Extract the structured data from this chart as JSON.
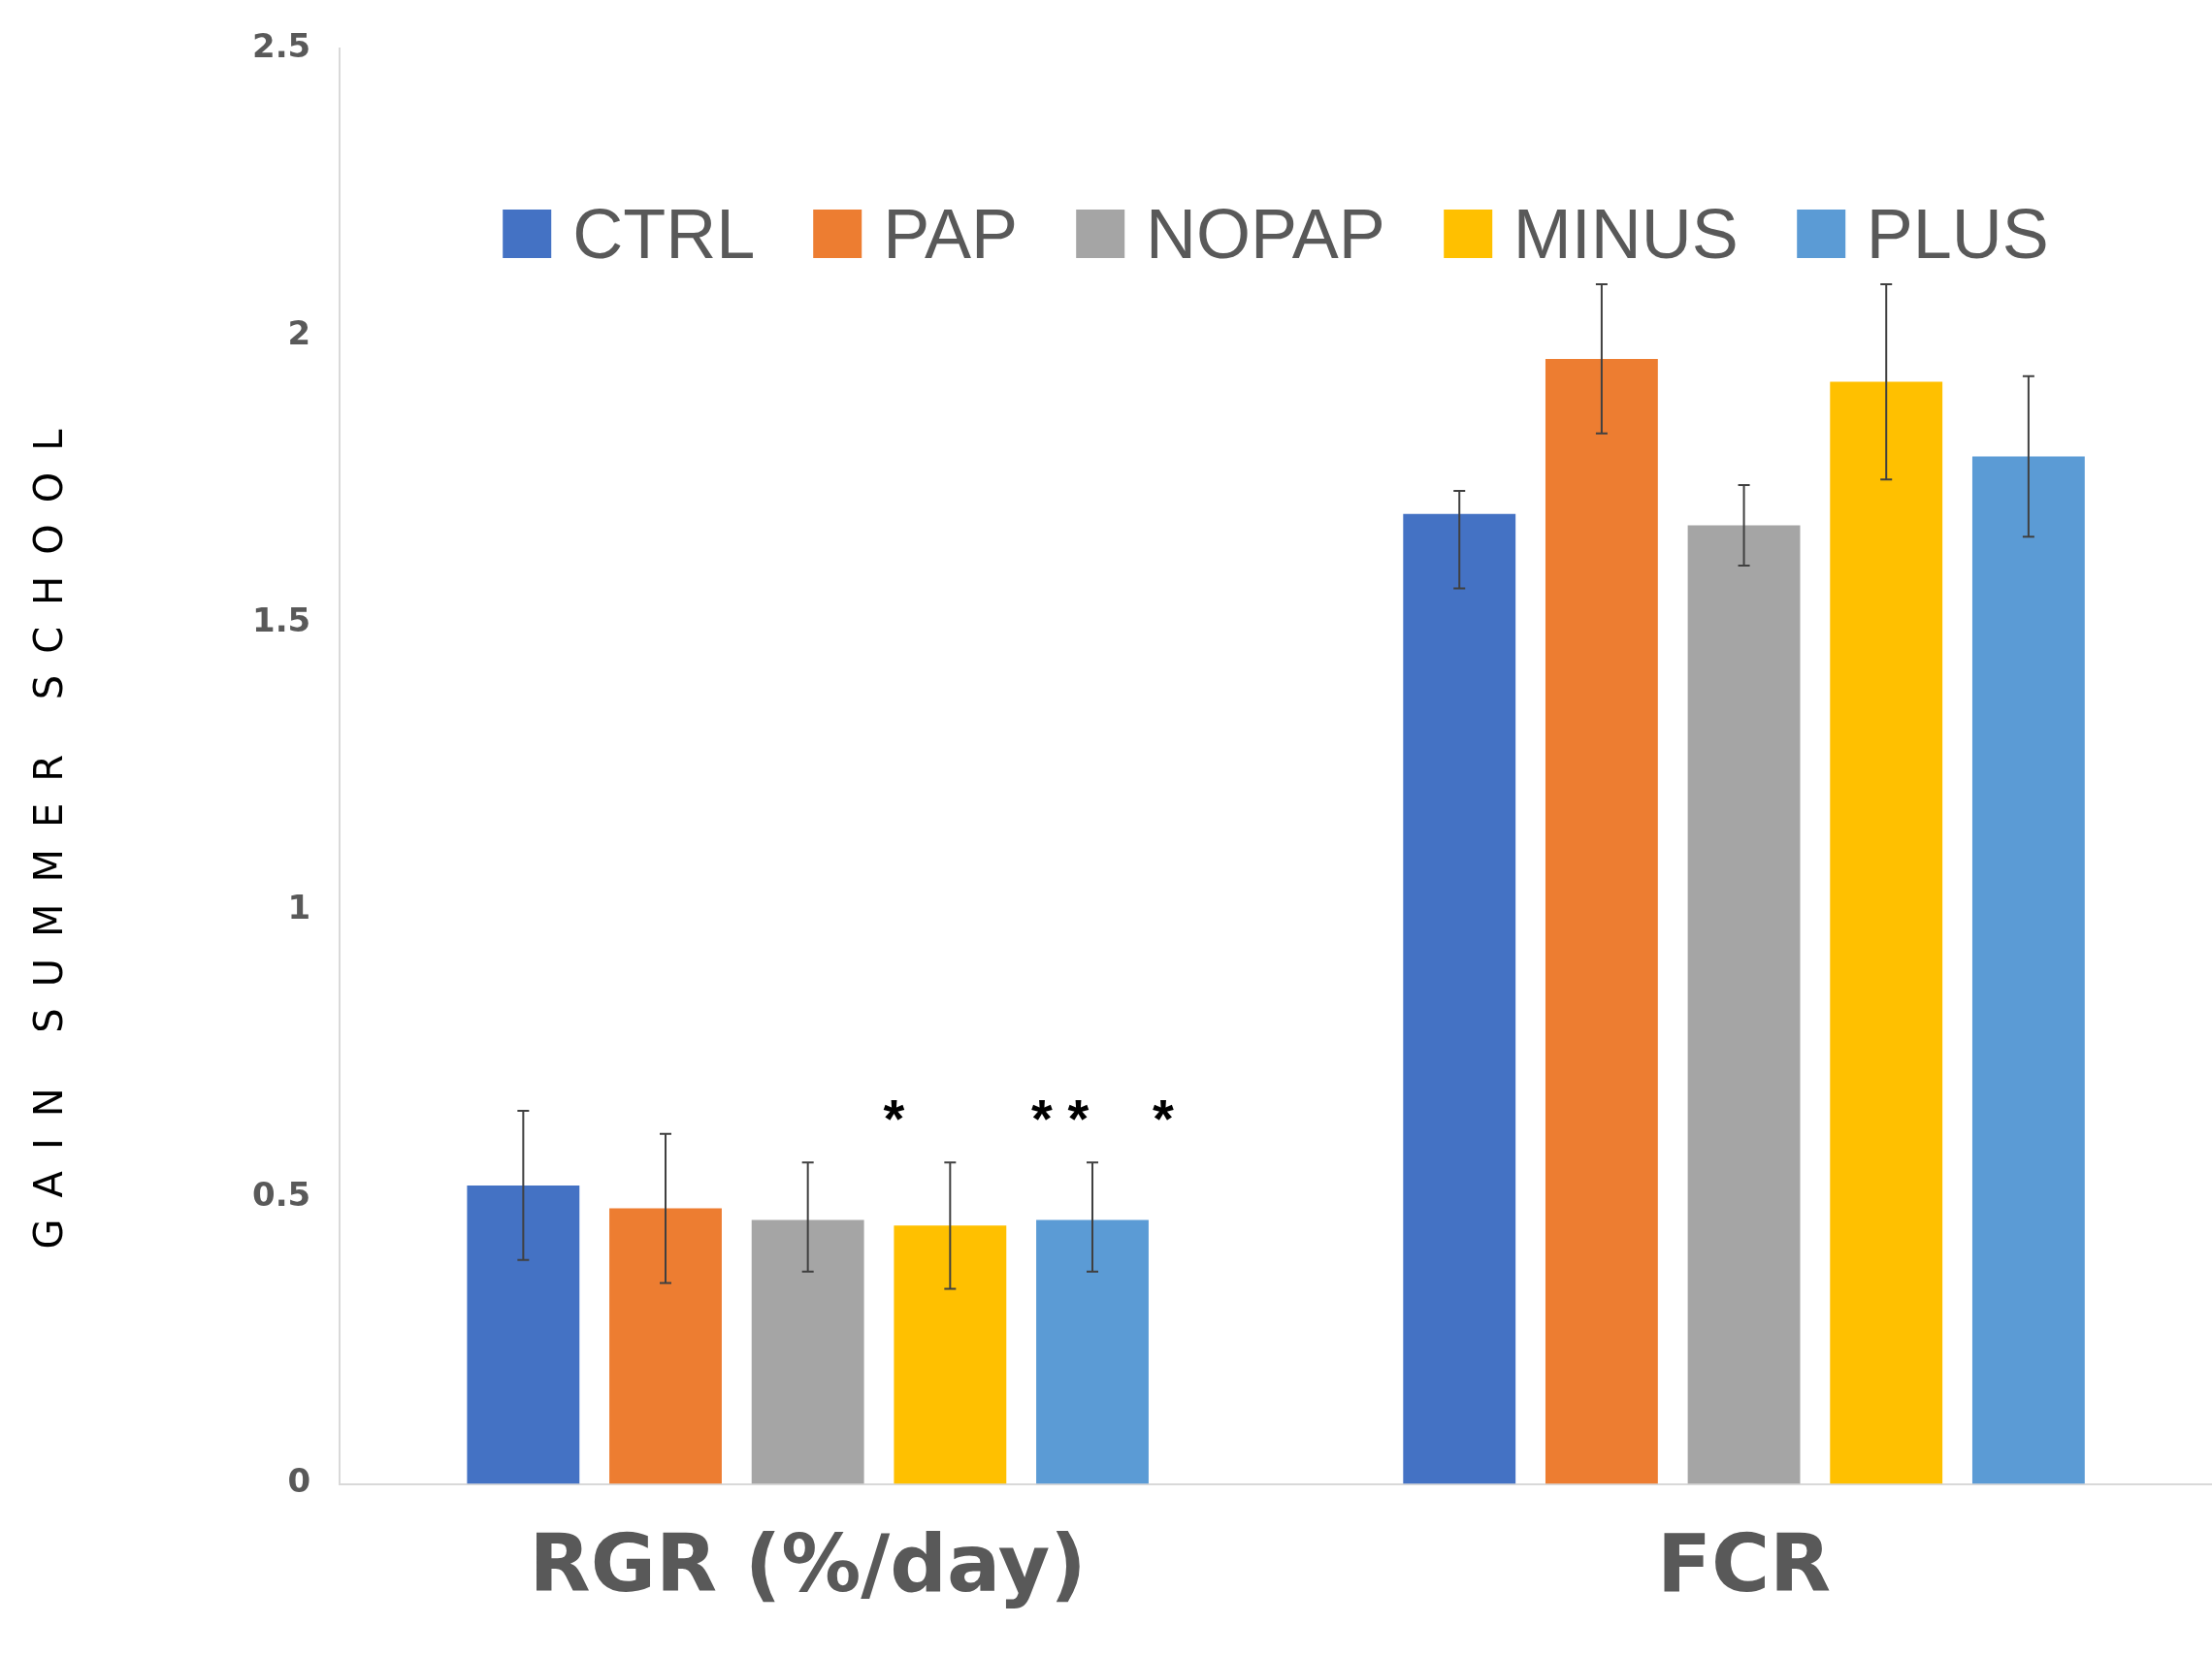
{
  "chart_data": {
    "type": "bar",
    "ylabel": "GAIN SUMMER SCHOOL",
    "categories": [
      "RGR (%/day)",
      "FCR"
    ],
    "series": [
      {
        "name": "CTRL",
        "color": "#4472c4",
        "values": [
          0.52,
          1.69
        ],
        "errors": [
          [
            0.39,
            0.65
          ],
          [
            1.56,
            1.73
          ]
        ]
      },
      {
        "name": "PAP",
        "color": "#ed7d31",
        "values": [
          0.48,
          1.96
        ],
        "errors": [
          [
            0.35,
            0.61
          ],
          [
            1.83,
            2.09
          ]
        ]
      },
      {
        "name": "NOPAP",
        "color": "#a5a5a5",
        "values": [
          0.46,
          1.67
        ],
        "errors": [
          [
            0.37,
            0.56
          ],
          [
            1.6,
            1.74
          ]
        ]
      },
      {
        "name": "MINUS",
        "color": "#ffc000",
        "values": [
          0.45,
          1.92
        ],
        "errors": [
          [
            0.34,
            0.56
          ],
          [
            1.75,
            2.09
          ]
        ]
      },
      {
        "name": "PLUS",
        "color": "#5b9bd5",
        "values": [
          0.46,
          1.79
        ],
        "errors": [
          [
            0.37,
            0.56
          ],
          [
            1.65,
            1.93
          ]
        ]
      }
    ],
    "ylim": [
      0,
      2.5
    ],
    "yticks": [
      0,
      0.5,
      1,
      1.5,
      2,
      2.5
    ],
    "grid": false,
    "legend": "top",
    "annotations": [
      "*",
      "* *",
      "*"
    ]
  }
}
